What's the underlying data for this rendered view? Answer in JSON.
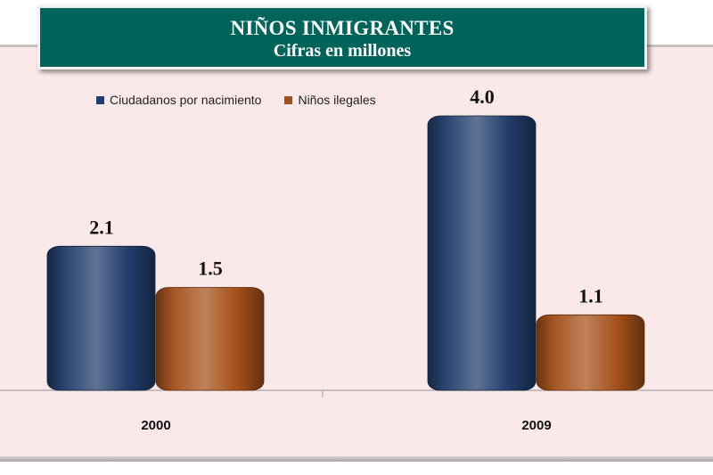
{
  "chart_data": {
    "type": "bar",
    "title": "NIÑOS INMIGRANTES",
    "subtitle": "Cifras en millones",
    "categories": [
      "2000",
      "2009"
    ],
    "series": [
      {
        "name": "Ciudadanos por nacimiento",
        "values": [
          2.1,
          4.0
        ],
        "labels": [
          "2.1",
          "4.0"
        ],
        "color": "#213d6b"
      },
      {
        "name": "Niños ilegales",
        "values": [
          1.5,
          1.1
        ],
        "labels": [
          "1.5",
          "1.1"
        ],
        "color": "#a5501a"
      }
    ],
    "ylim": [
      0,
      4.0
    ],
    "grid": false,
    "y_axis_visible": false,
    "legend_position": "top-left",
    "bar_style": "rounded 3D cylinders"
  }
}
